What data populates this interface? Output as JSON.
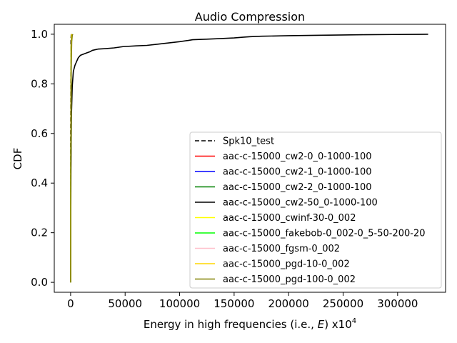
{
  "chart_data": {
    "type": "line",
    "title": "Audio Compression",
    "xlabel_main": "Energy in high frequencies (i.e., ",
    "xlabel_var": "E",
    "xlabel_tail": ") x10",
    "xlabel_exp": "4",
    "ylabel": "CDF",
    "xlim": [
      -15000,
      344000
    ],
    "ylim": [
      -0.04,
      1.04
    ],
    "xticks": [
      0,
      50000,
      100000,
      150000,
      200000,
      250000,
      300000
    ],
    "xtick_labels": [
      "0",
      "50000",
      "100000",
      "150000",
      "200000",
      "250000",
      "300000"
    ],
    "yticks": [
      0.0,
      0.2,
      0.4,
      0.6,
      0.8,
      1.0
    ],
    "ytick_labels": [
      "0.0",
      "0.2",
      "0.4",
      "0.6",
      "0.8",
      "1.0"
    ],
    "legend_position": "lower right",
    "series": [
      {
        "name": "Spk10_test",
        "color": "#000000",
        "dashed": true,
        "x": [
          0,
          0,
          300,
          600
        ],
        "y": [
          0.0,
          0.5,
          0.98,
          1.0
        ]
      },
      {
        "name": "aac-c-15000_cw2-0_0-1000-100",
        "color": "#ff0000",
        "dashed": false,
        "x": [
          0,
          200,
          500,
          900
        ],
        "y": [
          0.0,
          0.5,
          0.95,
          1.0
        ]
      },
      {
        "name": "aac-c-15000_cw2-1_0-1000-100",
        "color": "#0000ff",
        "dashed": false,
        "x": [
          0,
          200,
          500,
          900
        ],
        "y": [
          0.0,
          0.5,
          0.95,
          1.0
        ]
      },
      {
        "name": "aac-c-15000_cw2-2_0-1000-100",
        "color": "#008000",
        "dashed": false,
        "x": [
          0,
          200,
          500,
          900
        ],
        "y": [
          0.0,
          0.5,
          0.95,
          1.0
        ]
      },
      {
        "name": "aac-c-15000_cw2-50_0-1000-100",
        "color": "#000000",
        "dashed": false,
        "x": [
          0,
          300,
          800,
          1500,
          2500,
          4000,
          5500,
          7000,
          9000,
          12000,
          15000,
          18000,
          20000,
          25000,
          32000,
          40000,
          48000,
          60000,
          70000,
          80000,
          90000,
          100000,
          108000,
          112000,
          125000,
          140000,
          150000,
          158000,
          165000,
          175000,
          200000,
          230000,
          250000,
          270000,
          300000,
          320000,
          328000
        ],
        "y": [
          0.0,
          0.45,
          0.68,
          0.79,
          0.85,
          0.875,
          0.89,
          0.905,
          0.915,
          0.92,
          0.925,
          0.93,
          0.935,
          0.94,
          0.942,
          0.945,
          0.95,
          0.953,
          0.955,
          0.96,
          0.965,
          0.97,
          0.975,
          0.978,
          0.98,
          0.983,
          0.985,
          0.988,
          0.99,
          0.992,
          0.994,
          0.996,
          0.997,
          0.998,
          0.999,
          0.9995,
          1.0
        ]
      },
      {
        "name": "aac-c-15000_cwinf-30-0_002",
        "color": "#ffff00",
        "dashed": false,
        "x": [
          0,
          200,
          500,
          900
        ],
        "y": [
          0.0,
          0.5,
          0.95,
          1.0
        ]
      },
      {
        "name": "aac-c-15000_fakebob-0_002-0_5-50-200-20",
        "color": "#00ff00",
        "dashed": false,
        "x": [
          0,
          200,
          500,
          900
        ],
        "y": [
          0.0,
          0.5,
          0.95,
          1.0
        ]
      },
      {
        "name": "aac-c-15000_fgsm-0_002",
        "color": "#ffc0cb",
        "dashed": false,
        "x": [
          0,
          200,
          500,
          900
        ],
        "y": [
          0.0,
          0.5,
          0.95,
          1.0
        ]
      },
      {
        "name": "aac-c-15000_pgd-10-0_002",
        "color": "#ffd700",
        "dashed": false,
        "x": [
          0,
          200,
          500,
          900
        ],
        "y": [
          0.0,
          0.5,
          0.95,
          1.0
        ]
      },
      {
        "name": "aac-c-15000_pgd-100-0_002",
        "color": "#808000",
        "dashed": false,
        "x": [
          0,
          200,
          500,
          1000,
          1500,
          2000
        ],
        "y": [
          0.0,
          0.4,
          0.85,
          0.97,
          0.995,
          1.0
        ]
      }
    ]
  }
}
